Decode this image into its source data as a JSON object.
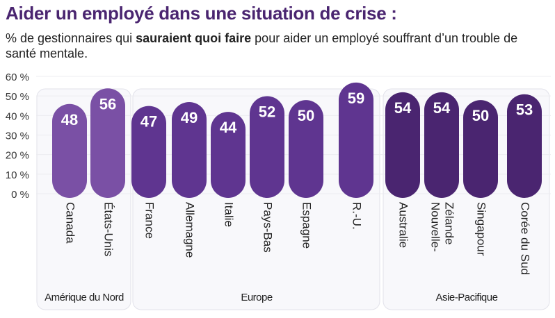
{
  "title": "Aider un employé dans une situation de crise :",
  "subtitle": {
    "before": "% de gestionnaires qui ",
    "bold": "sauraient quoi faire",
    "after": " pour aider un employé souffrant d’un trouble de santé mentale."
  },
  "chart_data": {
    "type": "bar",
    "ylim": [
      0,
      60
    ],
    "yticks": [
      0,
      10,
      20,
      30,
      40,
      50,
      60
    ],
    "ytick_labels": [
      "0 %",
      "10 %",
      "20 %",
      "30 %",
      "40 %",
      "50 %",
      "60 %"
    ],
    "grid": true,
    "groups": [
      {
        "name": "Amérique du Nord",
        "color": "#7a50a5",
        "categories": [
          "Canada",
          "États-Unis"
        ],
        "values": [
          48,
          56
        ]
      },
      {
        "name": "Europe",
        "color": "#5f3590",
        "categories": [
          "France",
          "Allemagne",
          "Italie",
          "Pays-Bas",
          "Espagne",
          "R.-U."
        ],
        "values": [
          47,
          49,
          44,
          52,
          50,
          59
        ]
      },
      {
        "name": "Asie-Pacifique",
        "color": "#4a2570",
        "categories": [
          "Australie",
          "Nouvelle-\nZélande",
          "Singapour",
          "Corée du Sud"
        ],
        "values": [
          54,
          54,
          50,
          53
        ]
      }
    ]
  }
}
